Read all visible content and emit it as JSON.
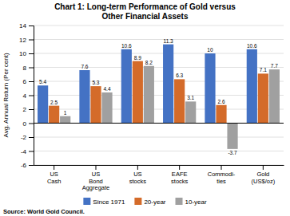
{
  "chart_data": {
    "type": "bar",
    "title": "Chart 1: Long-term Performance of Gold versus\nOther Financial Assets",
    "y_label": "Avg. Annual Return (Per cent)",
    "source": "Source: World Gold Council.",
    "categories": [
      "US\nCash",
      "US\nBond\nAggregate",
      "US\nstocks",
      "EAFE\nstocks",
      "Commodi-\nties",
      "Gold\n(US$/oz)"
    ],
    "series": [
      {
        "name": "Since 1971",
        "color": "#4472C4",
        "values": [
          5.4,
          7.6,
          10.6,
          11.3,
          10.0,
          10.6
        ]
      },
      {
        "name": "20-year",
        "color": "#D46B2A",
        "values": [
          2.5,
          5.3,
          8.9,
          6.3,
          2.6,
          7.1
        ]
      },
      {
        "name": "10-year",
        "color": "#A0A0A0",
        "values": [
          1.0,
          4.4,
          8.2,
          3.1,
          -3.7,
          7.7
        ]
      }
    ],
    "ylim": [
      -6,
      14
    ],
    "yticks": [
      -6,
      -4,
      -2,
      0,
      2,
      4,
      6,
      8,
      10,
      12,
      14
    ],
    "grid": true,
    "legend": "bottom",
    "data_labels": true
  }
}
